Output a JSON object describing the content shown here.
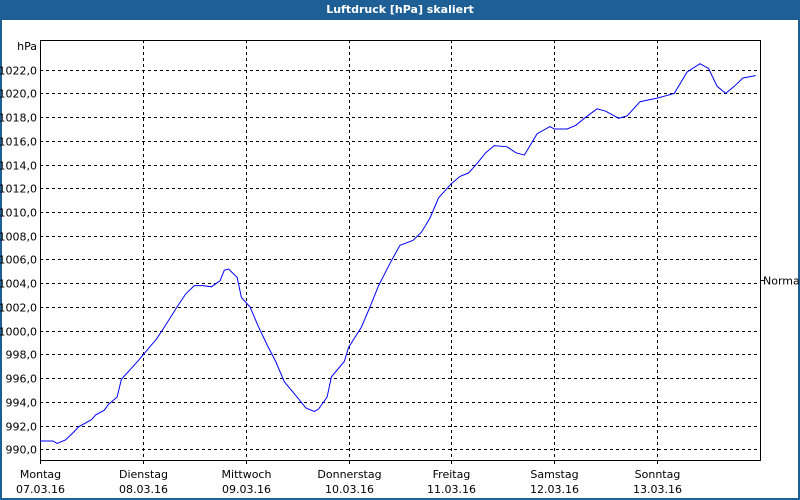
{
  "window": {
    "title": "Luftdruck [hPa] skaliert"
  },
  "chart_data": {
    "type": "line",
    "title": "Luftdruck [hPa] skaliert",
    "ylabel": "hPa",
    "ylim": [
      989.1,
      1024.5
    ],
    "yticks": [
      "990,0",
      "992,0",
      "994,0",
      "996,0",
      "998,0",
      "1000,0",
      "1002,0",
      "1004,0",
      "1006,0",
      "1008,0",
      "1010,0",
      "1012,0",
      "1014,0",
      "1016,0",
      "1018,0",
      "1020,0",
      "1022,0"
    ],
    "ytick_values": [
      990,
      992,
      994,
      996,
      998,
      1000,
      1002,
      1004,
      1006,
      1008,
      1010,
      1012,
      1014,
      1016,
      1018,
      1020,
      1022
    ],
    "xlim": [
      "2016-03-07T00:00",
      "2016-03-14T00:00"
    ],
    "xticks": [
      {
        "day": "Montag",
        "date": "07.03.16"
      },
      {
        "day": "Dienstag",
        "date": "08.03.16"
      },
      {
        "day": "Mittwoch",
        "date": "09.03.16"
      },
      {
        "day": "Donnerstag",
        "date": "10.03.16"
      },
      {
        "day": "Freitag",
        "date": "11.03.16"
      },
      {
        "day": "Samstag",
        "date": "12.03.16"
      },
      {
        "day": "Sonntag",
        "date": "13.03.16"
      }
    ],
    "grid": true,
    "reference_label": "Normal",
    "reference_value": 1004.3,
    "line_color": "#0000ff",
    "series": [
      {
        "x": [
          "2016-03-07T00:00",
          "2016-03-07T03:00",
          "2016-03-07T04:00",
          "2016-03-07T06:00",
          "2016-03-07T08:00",
          "2016-03-07T09:00",
          "2016-03-07T12:00",
          "2016-03-07T13:00",
          "2016-03-07T15:00",
          "2016-03-07T16:00",
          "2016-03-07T18:00",
          "2016-03-07T19:00",
          "2016-03-07T21:00",
          "2016-03-07T23:00",
          "2016-03-08T02:00",
          "2016-03-08T03:00",
          "2016-03-08T05:00",
          "2016-03-08T08:00",
          "2016-03-08T10:00",
          "2016-03-08T12:00",
          "2016-03-08T14:00",
          "2016-03-08T16:00",
          "2016-03-08T18:00",
          "2016-03-08T19:00",
          "2016-03-08T20:00",
          "2016-03-08T22:00",
          "2016-03-08T23:00",
          "2016-03-09T01:00",
          "2016-03-09T03:00",
          "2016-03-09T05:00",
          "2016-03-09T07:00",
          "2016-03-09T09:00",
          "2016-03-09T12:00",
          "2016-03-09T14:00",
          "2016-03-09T16:00",
          "2016-03-09T17:00",
          "2016-03-09T19:00",
          "2016-03-09T20:00",
          "2016-03-09T23:00",
          "2016-03-10T00:00",
          "2016-03-10T03:00",
          "2016-03-10T05:00",
          "2016-03-10T07:00",
          "2016-03-10T10:00",
          "2016-03-10T12:00",
          "2016-03-10T15:00",
          "2016-03-10T17:00",
          "2016-03-10T19:00",
          "2016-03-10T21:00",
          "2016-03-11T00:00",
          "2016-03-11T02:00",
          "2016-03-11T04:00",
          "2016-03-11T06:00",
          "2016-03-11T08:00",
          "2016-03-11T10:00",
          "2016-03-11T13:00",
          "2016-03-11T15:00",
          "2016-03-11T17:00",
          "2016-03-11T18:00",
          "2016-03-11T20:00",
          "2016-03-11T23:00",
          "2016-03-12T00:00",
          "2016-03-12T03:00",
          "2016-03-12T05:00",
          "2016-03-12T07:00",
          "2016-03-12T10:00",
          "2016-03-12T12:00",
          "2016-03-12T14:00",
          "2016-03-12T15:00",
          "2016-03-12T17:00",
          "2016-03-12T20:00",
          "2016-03-13T00:00",
          "2016-03-13T02:00",
          "2016-03-13T04:00",
          "2016-03-13T07:00",
          "2016-03-13T10:00",
          "2016-03-13T12:00",
          "2016-03-13T14:00",
          "2016-03-13T16:00",
          "2016-03-13T18:00",
          "2016-03-13T20:00",
          "2016-03-13T23:00"
        ],
        "values": [
          990.7,
          990.7,
          990.5,
          990.8,
          991.5,
          991.9,
          992.5,
          992.9,
          993.3,
          993.8,
          994.4,
          995.9,
          996.7,
          997.5,
          998.8,
          999.2,
          1000.3,
          1002.0,
          1003.1,
          1003.8,
          1003.8,
          1003.7,
          1004.2,
          1005.1,
          1005.2,
          1004.5,
          1002.8,
          1002.0,
          1000.3,
          998.8,
          997.4,
          995.7,
          994.4,
          993.5,
          993.2,
          993.4,
          994.4,
          996.1,
          997.4,
          998.6,
          1000.3,
          1002.0,
          1003.8,
          1005.9,
          1007.2,
          1007.6,
          1008.3,
          1009.5,
          1011.2,
          1012.4,
          1013.0,
          1013.3,
          1014.1,
          1015.0,
          1015.6,
          1015.5,
          1015.0,
          1014.8,
          1015.4,
          1016.6,
          1017.2,
          1017.0,
          1017.0,
          1017.3,
          1017.9,
          1018.7,
          1018.5,
          1018.1,
          1017.9,
          1018.1,
          1019.3,
          1019.6,
          1019.8,
          1020.0,
          1021.8,
          1022.5,
          1022.1,
          1020.6,
          1020.0,
          1020.6,
          1021.3,
          1021.5
        ]
      }
    ]
  }
}
